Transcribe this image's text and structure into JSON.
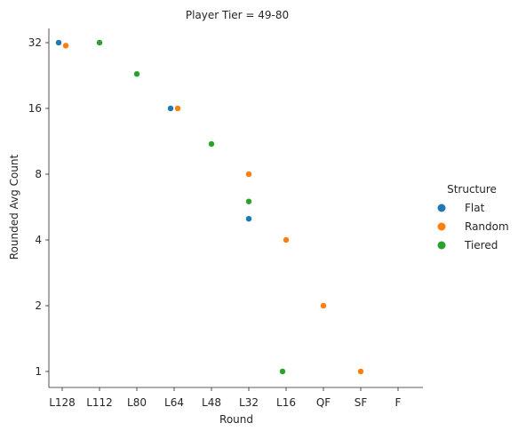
{
  "chart_data": {
    "type": "scatter",
    "title": "Player Tier = 49-80",
    "xlabel": "Round",
    "ylabel": "Rounded Avg Count",
    "y_scale": "log2",
    "categories": [
      "L128",
      "L112",
      "L80",
      "L64",
      "L48",
      "L32",
      "L16",
      "QF",
      "SF",
      "F"
    ],
    "yticks": [
      1,
      2,
      4,
      8,
      16,
      32
    ],
    "ylim": [
      0.9,
      40
    ],
    "grid": false,
    "legend": {
      "title": "Structure",
      "position": "right"
    },
    "series": [
      {
        "name": "Flat",
        "color": "#1f77b4",
        "points": [
          {
            "x": "L128",
            "y": 32
          },
          {
            "x": "L64",
            "y": 16
          },
          {
            "x": "L32",
            "y": 5
          },
          {
            "x": "L16",
            "y": 1
          }
        ]
      },
      {
        "name": "Random",
        "color": "#ff7f0e",
        "points": [
          {
            "x": "L128",
            "y": 31
          },
          {
            "x": "L64",
            "y": 16
          },
          {
            "x": "L32",
            "y": 8
          },
          {
            "x": "L16",
            "y": 4
          },
          {
            "x": "QF",
            "y": 2
          },
          {
            "x": "SF",
            "y": 1
          }
        ]
      },
      {
        "name": "Tiered",
        "color": "#2ca02c",
        "points": [
          {
            "x": "L112",
            "y": 32
          },
          {
            "x": "L80",
            "y": 23
          },
          {
            "x": "L48",
            "y": 11
          },
          {
            "x": "L32",
            "y": 6
          },
          {
            "x": "L16",
            "y": 1
          }
        ]
      }
    ]
  }
}
